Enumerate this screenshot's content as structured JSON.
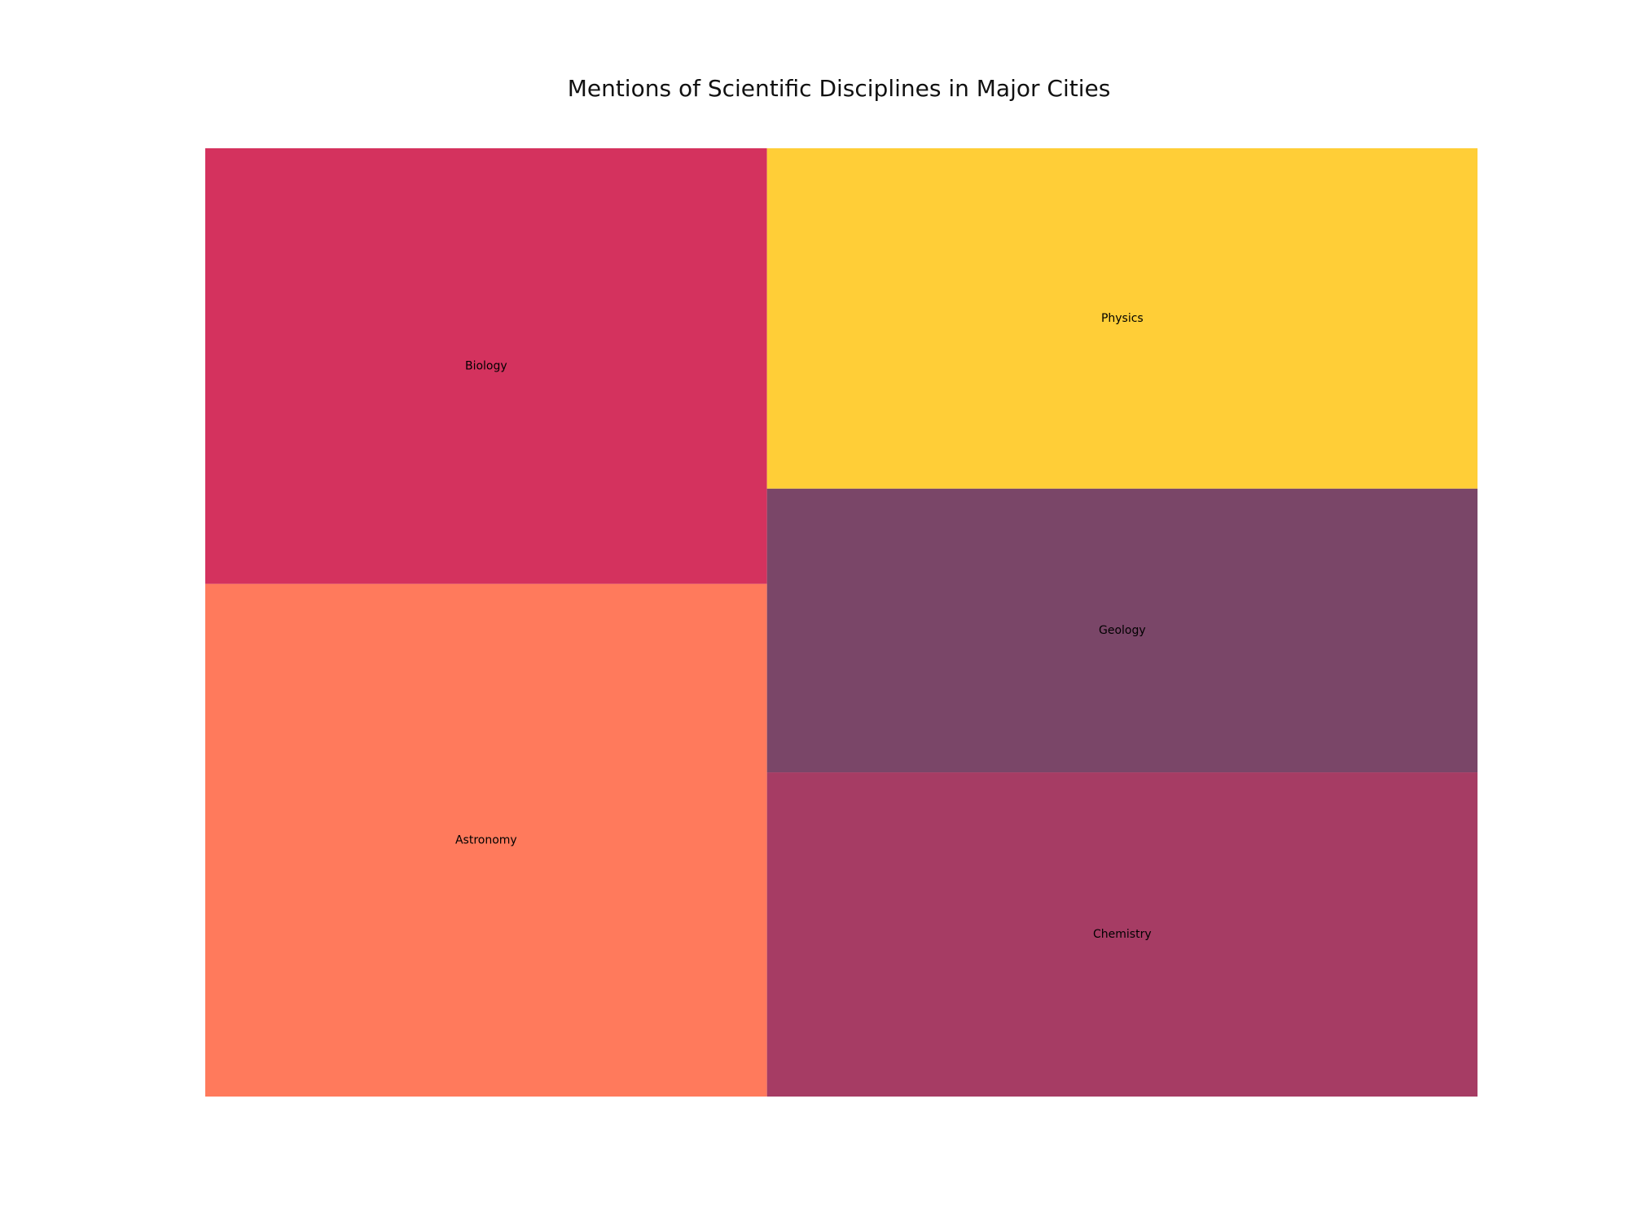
{
  "chart_data": {
    "type": "treemap",
    "title": "Mentions of Scientific Disciplines in Major Cities",
    "items": [
      {
        "label": "Astronomy",
        "value": 300,
        "color": "#ff7a5c"
      },
      {
        "label": "Biology",
        "value": 255,
        "color": "#d4325e"
      },
      {
        "label": "Chemistry",
        "value": 240,
        "color": "#a63c64"
      },
      {
        "label": "Geology",
        "value": 210,
        "color": "#7a4668"
      },
      {
        "label": "Physics",
        "value": 252,
        "color": "#ffce37"
      }
    ],
    "grid": false,
    "legend": "none"
  }
}
